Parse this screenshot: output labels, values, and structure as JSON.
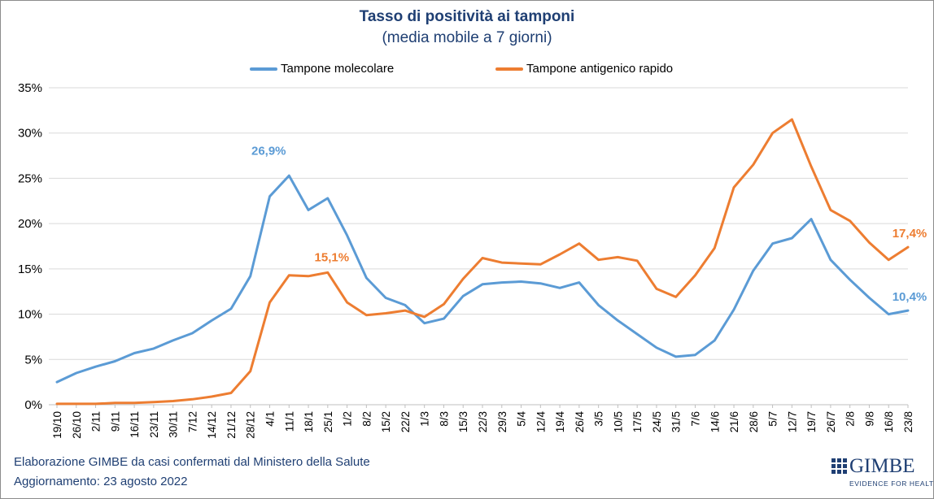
{
  "header": {
    "title": "Tasso  di positività ai tamponi",
    "subtitle": "(media mobile a 7 giorni)"
  },
  "legend": {
    "items": [
      {
        "label": "Tampone molecolare",
        "color": "#5b9bd5"
      },
      {
        "label": "Tampone antigenico rapido",
        "color": "#ed7d31"
      }
    ]
  },
  "footer": {
    "source": "Elaborazione GIMBE da casi confermati dal Ministero della Salute",
    "updated": "Aggiornamento:  23 agosto 2022"
  },
  "logo": {
    "name": "GIMBE",
    "tagline": "EVIDENCE FOR HEALTH"
  },
  "chart_data": {
    "type": "line",
    "title": "Tasso  di positività ai tamponi",
    "subtitle": "(media mobile a 7 giorni)",
    "xlabel": "",
    "ylabel": "",
    "ylim": [
      0,
      35
    ],
    "yticks": [
      0,
      5,
      10,
      15,
      20,
      25,
      30,
      35
    ],
    "ytick_labels": [
      "0%",
      "5%",
      "10%",
      "15%",
      "20%",
      "25%",
      "30%",
      "35%"
    ],
    "grid": true,
    "legend_position": "top",
    "categories": [
      "19/10",
      "26/10",
      "2/11",
      "9/11",
      "16/11",
      "23/11",
      "30/11",
      "7/12",
      "14/12",
      "21/12",
      "28/12",
      "4/1",
      "11/1",
      "18/1",
      "25/1",
      "1/2",
      "8/2",
      "15/2",
      "22/2",
      "1/3",
      "8/3",
      "15/3",
      "22/3",
      "29/3",
      "5/4",
      "12/4",
      "19/4",
      "26/4",
      "3/5",
      "10/5",
      "17/5",
      "24/5",
      "31/5",
      "7/6",
      "14/6",
      "21/6",
      "28/6",
      "5/7",
      "12/7",
      "19/7",
      "26/7",
      "2/8",
      "9/8",
      "16/8",
      "23/8"
    ],
    "series": [
      {
        "name": "Tampone molecolare",
        "color": "#5b9bd5",
        "values": [
          2.5,
          3.5,
          4.2,
          4.8,
          5.7,
          6.2,
          7.1,
          7.9,
          9.3,
          10.6,
          14.2,
          23.0,
          25.3,
          21.5,
          22.8,
          18.7,
          14.0,
          11.8,
          11.0,
          9.0,
          9.5,
          12.0,
          13.3,
          13.5,
          13.6,
          13.4,
          12.9,
          13.5,
          11.0,
          9.3,
          7.8,
          6.3,
          5.3,
          5.5,
          7.1,
          10.5,
          14.8,
          17.8,
          18.4,
          20.5,
          16.0,
          13.8,
          11.8,
          10.0,
          10.4
        ],
        "peak_label": "26,9%",
        "last_label": "10,4%"
      },
      {
        "name": "Tampone antigenico rapido",
        "color": "#ed7d31",
        "values": [
          0.1,
          0.1,
          0.1,
          0.2,
          0.2,
          0.3,
          0.4,
          0.6,
          0.9,
          1.3,
          3.7,
          11.3,
          14.3,
          14.2,
          14.6,
          11.3,
          9.9,
          10.1,
          10.4,
          9.7,
          11.1,
          13.9,
          16.2,
          15.7,
          15.6,
          15.5,
          16.6,
          17.8,
          16.0,
          16.3,
          15.9,
          12.8,
          11.9,
          14.3,
          17.3,
          24.0,
          26.5,
          30.0,
          31.5,
          26.3,
          21.5,
          20.3,
          17.9,
          16.0,
          17.4
        ],
        "peak_label": "15,1%",
        "last_label": "17,4%"
      }
    ]
  }
}
